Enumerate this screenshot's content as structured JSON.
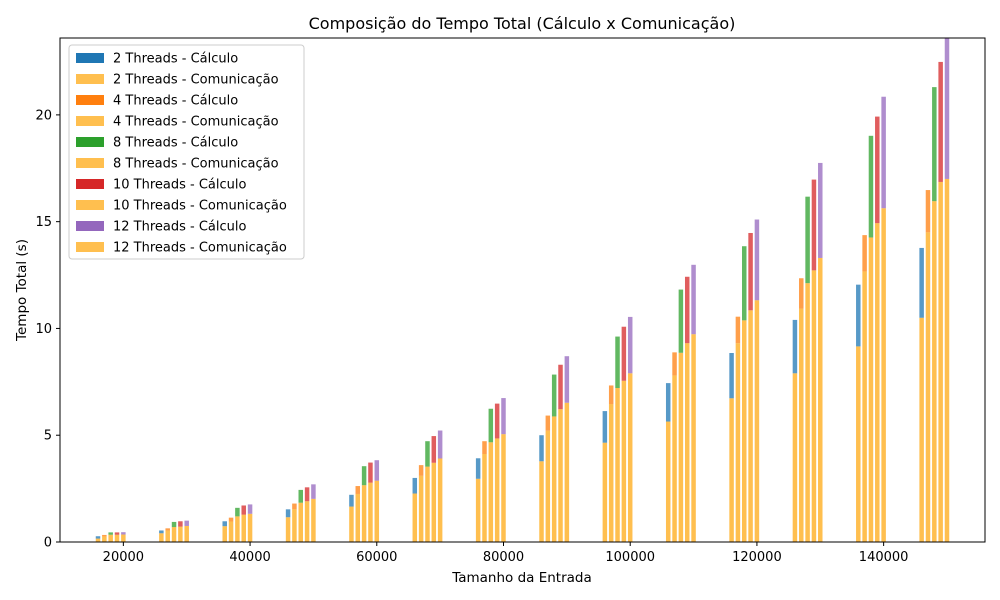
{
  "chart_data": {
    "type": "bar",
    "stacked": true,
    "title": "Composição do Tempo Total (Cálculo x Comunicação)",
    "xlabel": "Tamanho da Entrada",
    "ylabel": "Tempo Total (s)",
    "xlim": [
      10000,
      156000
    ],
    "ylim": [
      0,
      23.6
    ],
    "xticks": [
      20000,
      40000,
      60000,
      80000,
      100000,
      120000,
      140000
    ],
    "yticks": [
      0,
      5,
      10,
      15,
      20
    ],
    "x": [
      16000,
      20000,
      26000,
      30000,
      36000,
      40000,
      46000,
      50000,
      56000,
      60000,
      66000,
      70000,
      76000,
      80000,
      86000,
      90000,
      96000,
      100000,
      106000,
      110000,
      116000,
      120000,
      126000,
      130000,
      136000,
      140000,
      146000,
      150000
    ],
    "group_offsets": [
      -3000,
      -2000,
      -1000,
      0,
      1000
    ],
    "legend": {
      "position": "upper-left",
      "entries": [
        {
          "label": "2 Threads - Cálculo",
          "color": "#1f77b4"
        },
        {
          "label": "2 Threads - Comunicação",
          "color": "#ffbf4f"
        },
        {
          "label": "4 Threads - Cálculo",
          "color": "#ff7f0e"
        },
        {
          "label": "4 Threads - Comunicação",
          "color": "#ffbf4f"
        },
        {
          "label": "8 Threads - Cálculo",
          "color": "#2ca02c"
        },
        {
          "label": "8 Threads - Comunicação",
          "color": "#ffbf4f"
        },
        {
          "label": "10 Threads - Cálculo",
          "color": "#d62728"
        },
        {
          "label": "10 Threads - Comunicação",
          "color": "#ffbf4f"
        },
        {
          "label": "12 Threads - Cálculo",
          "color": "#9467bd"
        },
        {
          "label": "12 Threads - Comunicação",
          "color": "#ffbf4f"
        }
      ]
    },
    "series": [
      {
        "threads": 2,
        "calc_color": "#1f77b4",
        "comm_color": "#ffbf4f",
        "offset": -3000,
        "x": [
          19000,
          29000,
          39000,
          49000,
          59000,
          69000,
          79000,
          89000,
          99000,
          109000,
          119000,
          129000,
          139000,
          149000
        ],
        "total": [
          0.27,
          0.54,
          0.97,
          1.53,
          2.21,
          3.0,
          3.92,
          5.0,
          6.13,
          7.44,
          8.85,
          10.4,
          12.05,
          13.77
        ],
        "comm": [
          0.16,
          0.41,
          0.74,
          1.16,
          1.66,
          2.27,
          2.96,
          3.78,
          4.65,
          5.64,
          6.73,
          7.9,
          9.16,
          10.5
        ]
      },
      {
        "threads": 4,
        "calc_color": "#ff7f0e",
        "comm_color": "#ffbf4f",
        "offset": -2000,
        "x": [
          19000,
          29000,
          39000,
          49000,
          59000,
          69000,
          79000,
          89000,
          99000,
          109000,
          119000,
          129000,
          139000,
          149000
        ],
        "total": [
          0.33,
          0.64,
          1.14,
          1.8,
          2.62,
          3.6,
          4.72,
          5.92,
          7.33,
          8.88,
          10.55,
          12.35,
          14.37,
          16.48
        ],
        "comm": [
          0.26,
          0.54,
          0.96,
          1.54,
          2.25,
          3.1,
          4.12,
          5.21,
          6.46,
          7.8,
          9.31,
          10.93,
          12.67,
          14.5
        ]
      },
      {
        "threads": 8,
        "calc_color": "#2ca02c",
        "comm_color": "#ffbf4f",
        "offset": -1000,
        "x": [
          19000,
          29000,
          39000,
          49000,
          59000,
          69000,
          79000,
          89000,
          99000,
          109000,
          119000,
          129000,
          139000,
          149000
        ],
        "total": [
          0.45,
          0.94,
          1.6,
          2.44,
          3.55,
          4.72,
          6.24,
          7.84,
          9.62,
          11.82,
          13.85,
          16.17,
          19.02,
          21.3
        ],
        "comm": [
          0.34,
          0.7,
          1.2,
          1.84,
          2.66,
          3.53,
          4.67,
          5.88,
          7.21,
          8.86,
          10.38,
          12.12,
          14.26,
          15.96
        ]
      },
      {
        "threads": 10,
        "calc_color": "#d62728",
        "comm_color": "#ffbf4f",
        "offset": 0,
        "x": [
          19000,
          29000,
          39000,
          49000,
          59000,
          69000,
          79000,
          89000,
          99000,
          109000,
          119000,
          129000,
          139000,
          149000
        ],
        "total": [
          0.45,
          0.97,
          1.71,
          2.56,
          3.72,
          4.96,
          6.48,
          8.3,
          10.08,
          12.42,
          14.47,
          16.97,
          19.92,
          22.48
        ],
        "comm": [
          0.34,
          0.72,
          1.28,
          1.91,
          2.78,
          3.71,
          4.85,
          6.22,
          7.55,
          9.31,
          10.85,
          12.72,
          14.93,
          16.86
        ]
      },
      {
        "threads": 12,
        "calc_color": "#9467bd",
        "comm_color": "#ffbf4f",
        "offset": 1000,
        "x": [
          19000,
          29000,
          39000,
          49000,
          59000,
          69000,
          79000,
          89000,
          99000,
          109000,
          119000,
          129000,
          139000,
          149000
        ],
        "total": [
          0.46,
          1.0,
          1.76,
          2.7,
          3.83,
          5.22,
          6.74,
          8.7,
          10.54,
          12.98,
          15.1,
          17.75,
          20.85,
          23.7
        ],
        "comm": [
          0.35,
          0.75,
          1.32,
          2.02,
          2.87,
          3.91,
          5.05,
          6.52,
          7.9,
          9.73,
          11.32,
          13.3,
          15.63,
          17.0
        ]
      }
    ]
  }
}
